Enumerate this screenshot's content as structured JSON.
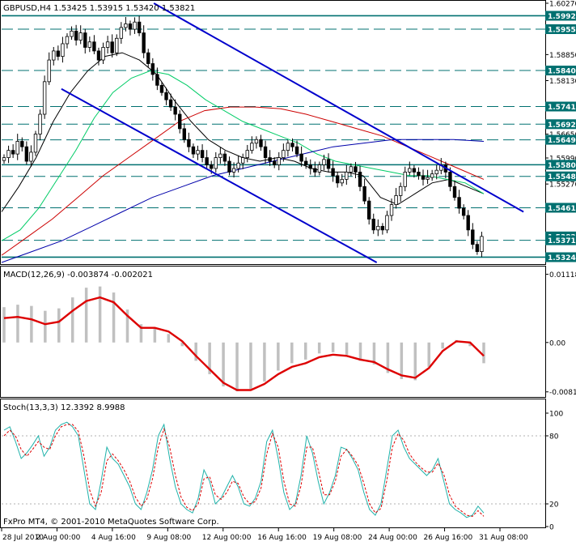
{
  "window": {
    "header": "GBPUSD,H4  1.53425 1.53915 1.53420 1.53821",
    "copyright": "FxPro MT4, © 2001-2010 MetaQuotes Software Corp."
  },
  "colors": {
    "bull": "#000000",
    "bear": "#000000",
    "trendline": "#0000cc",
    "hline": "#007070",
    "ma_short": "#000000",
    "ma_mid": "#00cc66",
    "ma_red": "#cc0000",
    "ma_blue": "#0000aa",
    "macd_line": "#dd0000",
    "macd_hist": "#c0c0c0",
    "stoch_main": "#20b2aa",
    "stoch_signal": "#dd0000",
    "price_tag_bg": "#007070"
  },
  "chart_data": [
    {
      "type": "candlestick",
      "symbol": "GBPUSD",
      "timeframe": "H4",
      "ohlc_last": {
        "open": 1.53425,
        "high": 1.53915,
        "low": 1.5342,
        "close": 1.53821
      },
      "ylim": [
        1.531,
        1.6027
      ],
      "y_ticks": [
        "1.60270",
        "1.58850",
        "1.58130",
        "1.56650",
        "1.55990",
        "1.55270"
      ],
      "price_tags": [
        "1.59923",
        "1.59553",
        "1.58409",
        "1.57413",
        "1.56925",
        "1.56493",
        "1.55803",
        "1.55482",
        "1.54613",
        "1.53821",
        "1.53714",
        "1.53246"
      ],
      "horizontal_levels": [
        1.59923,
        1.59553,
        1.58409,
        1.57413,
        1.56925,
        1.56493,
        1.55803,
        1.55482,
        1.54613,
        1.53714,
        1.53246
      ],
      "solid_levels": [
        1.59923,
        1.55803,
        1.53246
      ],
      "x_labels": [
        "28 Jul 2010",
        "2 Aug 00:00",
        "4 Aug 16:00",
        "9 Aug 08:00",
        "12 Aug 00:00",
        "16 Aug 16:00",
        "19 Aug 08:00",
        "24 Aug 00:00",
        "26 Aug 16:00",
        "31 Aug 08:00"
      ],
      "close_path": [
        1.56,
        1.562,
        1.561,
        1.5645,
        1.563,
        1.559,
        1.5615,
        1.5665,
        1.572,
        1.581,
        1.587,
        1.5895,
        1.588,
        1.5915,
        1.5935,
        1.595,
        1.5925,
        1.5945,
        1.5905,
        1.592,
        1.5895,
        1.587,
        1.5905,
        1.592,
        1.589,
        1.593,
        1.596,
        1.597,
        1.5955,
        1.5975,
        1.5945,
        1.589,
        1.586,
        1.583,
        1.58,
        1.578,
        1.576,
        1.574,
        1.572,
        1.568,
        1.565,
        1.563,
        1.561,
        1.562,
        1.56,
        1.558,
        1.557,
        1.56,
        1.561,
        1.559,
        1.556,
        1.557,
        1.5585,
        1.56,
        1.562,
        1.564,
        1.565,
        1.563,
        1.56,
        1.559,
        1.558,
        1.56,
        1.562,
        1.564,
        1.563,
        1.561,
        1.559,
        1.558,
        1.557,
        1.556,
        1.558,
        1.5595,
        1.557,
        1.555,
        1.553,
        1.554,
        1.556,
        1.5575,
        1.556,
        1.552,
        1.548,
        1.543,
        1.54,
        1.541,
        1.54,
        1.544,
        1.547,
        1.5495,
        1.552,
        1.556,
        1.557,
        1.556,
        1.555,
        1.554,
        1.5545,
        1.5555,
        1.5565,
        1.558,
        1.556,
        1.552,
        1.549,
        1.546,
        1.544,
        1.54,
        1.536,
        1.534,
        1.5382
      ],
      "moving_averages": [
        {
          "color_key": "ma_short",
          "values": [
            1.545,
            1.552,
            1.56,
            1.57,
            1.578,
            1.584,
            1.588,
            1.589,
            1.587,
            1.583,
            1.576,
            1.57,
            1.565,
            1.562,
            1.56,
            1.559,
            1.56,
            1.559,
            1.557,
            1.556,
            1.556,
            1.555,
            1.549,
            1.547,
            1.55,
            1.553,
            1.554,
            1.552,
            1.55
          ]
        },
        {
          "color_key": "ma_mid",
          "values": [
            1.537,
            1.54,
            1.546,
            1.554,
            1.562,
            1.571,
            1.578,
            1.582,
            1.584,
            1.583,
            1.58,
            1.576,
            1.573,
            1.57,
            1.568,
            1.566,
            1.564,
            1.561,
            1.559,
            1.558,
            1.557,
            1.556,
            1.555,
            1.555,
            1.554,
            1.553,
            1.55
          ]
        },
        {
          "color_key": "ma_red",
          "values": [
            1.533,
            1.538,
            1.543,
            1.549,
            1.555,
            1.56,
            1.565,
            1.57,
            1.573,
            1.574,
            1.574,
            1.5735,
            1.572,
            1.57,
            1.568,
            1.566,
            1.563,
            1.56,
            1.557,
            1.554
          ]
        },
        {
          "color_key": "ma_blue",
          "values": [
            1.531,
            1.534,
            1.537,
            1.541,
            1.545,
            1.549,
            1.552,
            1.555,
            1.557,
            1.559,
            1.561,
            1.563,
            1.564,
            1.565,
            1.565,
            1.565,
            1.5645
          ]
        }
      ],
      "trend_lines": [
        {
          "from": [
            0.11,
            1.579
          ],
          "to": [
            0.69,
            1.531
          ]
        },
        {
          "from": [
            0.28,
            1.6027
          ],
          "to": [
            0.96,
            1.545
          ]
        }
      ]
    },
    {
      "type": "line",
      "title": "MACD(12,26,9) -0.003874 -0.002021",
      "ylim": [
        -0.0084,
        0.0118
      ],
      "y_ticks": [
        "0.011188",
        "0.00",
        "-0.00810"
      ],
      "signal_line": [
        0.004,
        0.0042,
        0.0038,
        0.003,
        0.0034,
        0.0052,
        0.0068,
        0.0074,
        0.0066,
        0.0044,
        0.0024,
        0.0024,
        0.0018,
        0.0002,
        -0.0022,
        -0.0044,
        -0.0066,
        -0.0078,
        -0.0078,
        -0.0068,
        -0.0052,
        -0.004,
        -0.0034,
        -0.0024,
        -0.002,
        -0.0022,
        -0.0028,
        -0.0032,
        -0.0044,
        -0.0054,
        -0.0058,
        -0.0042,
        -0.0014,
        0.0002,
        0.0,
        -0.0022
      ],
      "histogram": [
        0.0058,
        0.0062,
        0.006,
        0.0052,
        0.0056,
        0.0074,
        0.009,
        0.0092,
        0.0082,
        0.0054,
        0.003,
        0.0024,
        0.0014,
        -0.0006,
        -0.003,
        -0.0052,
        -0.0072,
        -0.008,
        -0.0076,
        -0.0064,
        -0.0046,
        -0.0034,
        -0.0028,
        -0.0018,
        -0.0016,
        -0.002,
        -0.003,
        -0.0036,
        -0.005,
        -0.006,
        -0.0062,
        -0.004,
        -0.001,
        0.0004,
        -0.0006,
        -0.0034
      ]
    },
    {
      "type": "line",
      "title": "Stoch(13,3,3) 12.3392 8.9988",
      "ylim": [
        0,
        100
      ],
      "y_ticks": [
        "100",
        "80",
        "20",
        "0"
      ],
      "main": [
        85,
        88,
        75,
        60,
        65,
        72,
        80,
        62,
        70,
        85,
        90,
        92,
        88,
        80,
        50,
        20,
        15,
        40,
        70,
        60,
        55,
        45,
        35,
        20,
        15,
        30,
        50,
        80,
        90,
        60,
        35,
        20,
        15,
        12,
        25,
        50,
        40,
        20,
        25,
        35,
        45,
        35,
        20,
        18,
        25,
        40,
        75,
        85,
        60,
        30,
        15,
        20,
        45,
        80,
        65,
        40,
        20,
        30,
        45,
        70,
        68,
        60,
        50,
        30,
        15,
        10,
        20,
        50,
        80,
        85,
        70,
        60,
        55,
        50,
        45,
        50,
        60,
        40,
        20,
        15,
        12,
        8,
        10,
        18,
        12
      ],
      "signal": [
        80,
        85,
        80,
        68,
        62,
        68,
        75,
        70,
        68,
        80,
        88,
        90,
        90,
        84,
        62,
        32,
        18,
        30,
        58,
        64,
        58,
        50,
        40,
        26,
        18,
        24,
        42,
        70,
        86,
        70,
        45,
        26,
        17,
        14,
        20,
        42,
        44,
        28,
        24,
        30,
        40,
        38,
        26,
        20,
        22,
        34,
        64,
        82,
        70,
        40,
        20,
        18,
        36,
        70,
        70,
        50,
        28,
        28,
        40,
        62,
        68,
        62,
        54,
        38,
        20,
        12,
        16,
        40,
        70,
        82,
        76,
        64,
        57,
        52,
        48,
        48,
        56,
        46,
        28,
        18,
        14,
        10,
        9,
        14,
        9
      ]
    }
  ]
}
